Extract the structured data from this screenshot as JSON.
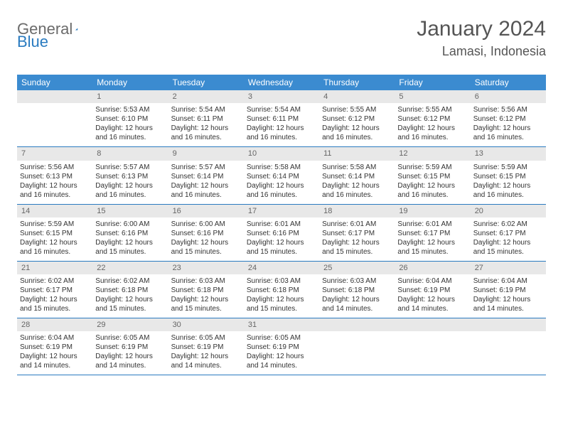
{
  "logo": {
    "text1": "General",
    "text2": "Blue"
  },
  "title": "January 2024",
  "location": "Lamasi, Indonesia",
  "day_headers": [
    "Sunday",
    "Monday",
    "Tuesday",
    "Wednesday",
    "Thursday",
    "Friday",
    "Saturday"
  ],
  "colors": {
    "header_bg": "#3b8bd0",
    "row_border": "#2a7bc0",
    "daynum_bg": "#e8e8e8",
    "logo_gray": "#6b6b6b",
    "logo_blue": "#2a7bc0"
  },
  "weeks": [
    [
      {
        "empty": true
      },
      {
        "num": "1",
        "sunrise": "Sunrise: 5:53 AM",
        "sunset": "Sunset: 6:10 PM",
        "daylight1": "Daylight: 12 hours",
        "daylight2": "and 16 minutes."
      },
      {
        "num": "2",
        "sunrise": "Sunrise: 5:54 AM",
        "sunset": "Sunset: 6:11 PM",
        "daylight1": "Daylight: 12 hours",
        "daylight2": "and 16 minutes."
      },
      {
        "num": "3",
        "sunrise": "Sunrise: 5:54 AM",
        "sunset": "Sunset: 6:11 PM",
        "daylight1": "Daylight: 12 hours",
        "daylight2": "and 16 minutes."
      },
      {
        "num": "4",
        "sunrise": "Sunrise: 5:55 AM",
        "sunset": "Sunset: 6:12 PM",
        "daylight1": "Daylight: 12 hours",
        "daylight2": "and 16 minutes."
      },
      {
        "num": "5",
        "sunrise": "Sunrise: 5:55 AM",
        "sunset": "Sunset: 6:12 PM",
        "daylight1": "Daylight: 12 hours",
        "daylight2": "and 16 minutes."
      },
      {
        "num": "6",
        "sunrise": "Sunrise: 5:56 AM",
        "sunset": "Sunset: 6:12 PM",
        "daylight1": "Daylight: 12 hours",
        "daylight2": "and 16 minutes."
      }
    ],
    [
      {
        "num": "7",
        "sunrise": "Sunrise: 5:56 AM",
        "sunset": "Sunset: 6:13 PM",
        "daylight1": "Daylight: 12 hours",
        "daylight2": "and 16 minutes."
      },
      {
        "num": "8",
        "sunrise": "Sunrise: 5:57 AM",
        "sunset": "Sunset: 6:13 PM",
        "daylight1": "Daylight: 12 hours",
        "daylight2": "and 16 minutes."
      },
      {
        "num": "9",
        "sunrise": "Sunrise: 5:57 AM",
        "sunset": "Sunset: 6:14 PM",
        "daylight1": "Daylight: 12 hours",
        "daylight2": "and 16 minutes."
      },
      {
        "num": "10",
        "sunrise": "Sunrise: 5:58 AM",
        "sunset": "Sunset: 6:14 PM",
        "daylight1": "Daylight: 12 hours",
        "daylight2": "and 16 minutes."
      },
      {
        "num": "11",
        "sunrise": "Sunrise: 5:58 AM",
        "sunset": "Sunset: 6:14 PM",
        "daylight1": "Daylight: 12 hours",
        "daylight2": "and 16 minutes."
      },
      {
        "num": "12",
        "sunrise": "Sunrise: 5:59 AM",
        "sunset": "Sunset: 6:15 PM",
        "daylight1": "Daylight: 12 hours",
        "daylight2": "and 16 minutes."
      },
      {
        "num": "13",
        "sunrise": "Sunrise: 5:59 AM",
        "sunset": "Sunset: 6:15 PM",
        "daylight1": "Daylight: 12 hours",
        "daylight2": "and 16 minutes."
      }
    ],
    [
      {
        "num": "14",
        "sunrise": "Sunrise: 5:59 AM",
        "sunset": "Sunset: 6:15 PM",
        "daylight1": "Daylight: 12 hours",
        "daylight2": "and 16 minutes."
      },
      {
        "num": "15",
        "sunrise": "Sunrise: 6:00 AM",
        "sunset": "Sunset: 6:16 PM",
        "daylight1": "Daylight: 12 hours",
        "daylight2": "and 15 minutes."
      },
      {
        "num": "16",
        "sunrise": "Sunrise: 6:00 AM",
        "sunset": "Sunset: 6:16 PM",
        "daylight1": "Daylight: 12 hours",
        "daylight2": "and 15 minutes."
      },
      {
        "num": "17",
        "sunrise": "Sunrise: 6:01 AM",
        "sunset": "Sunset: 6:16 PM",
        "daylight1": "Daylight: 12 hours",
        "daylight2": "and 15 minutes."
      },
      {
        "num": "18",
        "sunrise": "Sunrise: 6:01 AM",
        "sunset": "Sunset: 6:17 PM",
        "daylight1": "Daylight: 12 hours",
        "daylight2": "and 15 minutes."
      },
      {
        "num": "19",
        "sunrise": "Sunrise: 6:01 AM",
        "sunset": "Sunset: 6:17 PM",
        "daylight1": "Daylight: 12 hours",
        "daylight2": "and 15 minutes."
      },
      {
        "num": "20",
        "sunrise": "Sunrise: 6:02 AM",
        "sunset": "Sunset: 6:17 PM",
        "daylight1": "Daylight: 12 hours",
        "daylight2": "and 15 minutes."
      }
    ],
    [
      {
        "num": "21",
        "sunrise": "Sunrise: 6:02 AM",
        "sunset": "Sunset: 6:17 PM",
        "daylight1": "Daylight: 12 hours",
        "daylight2": "and 15 minutes."
      },
      {
        "num": "22",
        "sunrise": "Sunrise: 6:02 AM",
        "sunset": "Sunset: 6:18 PM",
        "daylight1": "Daylight: 12 hours",
        "daylight2": "and 15 minutes."
      },
      {
        "num": "23",
        "sunrise": "Sunrise: 6:03 AM",
        "sunset": "Sunset: 6:18 PM",
        "daylight1": "Daylight: 12 hours",
        "daylight2": "and 15 minutes."
      },
      {
        "num": "24",
        "sunrise": "Sunrise: 6:03 AM",
        "sunset": "Sunset: 6:18 PM",
        "daylight1": "Daylight: 12 hours",
        "daylight2": "and 15 minutes."
      },
      {
        "num": "25",
        "sunrise": "Sunrise: 6:03 AM",
        "sunset": "Sunset: 6:18 PM",
        "daylight1": "Daylight: 12 hours",
        "daylight2": "and 14 minutes."
      },
      {
        "num": "26",
        "sunrise": "Sunrise: 6:04 AM",
        "sunset": "Sunset: 6:19 PM",
        "daylight1": "Daylight: 12 hours",
        "daylight2": "and 14 minutes."
      },
      {
        "num": "27",
        "sunrise": "Sunrise: 6:04 AM",
        "sunset": "Sunset: 6:19 PM",
        "daylight1": "Daylight: 12 hours",
        "daylight2": "and 14 minutes."
      }
    ],
    [
      {
        "num": "28",
        "sunrise": "Sunrise: 6:04 AM",
        "sunset": "Sunset: 6:19 PM",
        "daylight1": "Daylight: 12 hours",
        "daylight2": "and 14 minutes."
      },
      {
        "num": "29",
        "sunrise": "Sunrise: 6:05 AM",
        "sunset": "Sunset: 6:19 PM",
        "daylight1": "Daylight: 12 hours",
        "daylight2": "and 14 minutes."
      },
      {
        "num": "30",
        "sunrise": "Sunrise: 6:05 AM",
        "sunset": "Sunset: 6:19 PM",
        "daylight1": "Daylight: 12 hours",
        "daylight2": "and 14 minutes."
      },
      {
        "num": "31",
        "sunrise": "Sunrise: 6:05 AM",
        "sunset": "Sunset: 6:19 PM",
        "daylight1": "Daylight: 12 hours",
        "daylight2": "and 14 minutes."
      },
      {
        "empty": true
      },
      {
        "empty": true
      },
      {
        "empty": true
      }
    ]
  ]
}
